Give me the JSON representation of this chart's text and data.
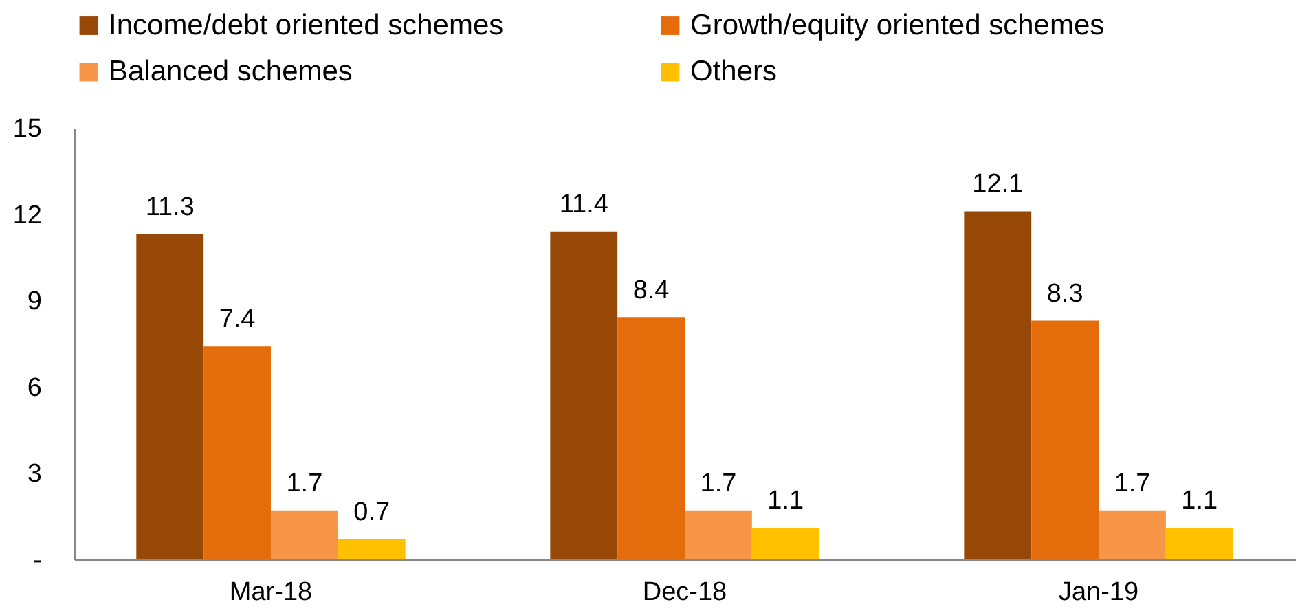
{
  "chart_data": {
    "type": "bar",
    "categories": [
      "Mar-18",
      "Dec-18",
      "Jan-19"
    ],
    "series": [
      {
        "name": "Income/debt oriented schemes",
        "color": "#974706",
        "values": [
          11.3,
          11.4,
          12.1
        ]
      },
      {
        "name": "Growth/equity oriented schemes",
        "color": "#e46c0a",
        "values": [
          7.4,
          8.4,
          8.3
        ]
      },
      {
        "name": "Balanced schemes",
        "color": "#f79646",
        "values": [
          1.7,
          1.7,
          1.7
        ]
      },
      {
        "name": "Others",
        "color": "#ffc000",
        "values": [
          0.7,
          1.1,
          1.1
        ]
      }
    ],
    "ylim": [
      0,
      15
    ],
    "yticks": [
      {
        "value": 0,
        "label": "-"
      },
      3,
      6,
      9,
      12,
      15
    ],
    "grid": false,
    "legend": "top",
    "data_labels": true
  }
}
